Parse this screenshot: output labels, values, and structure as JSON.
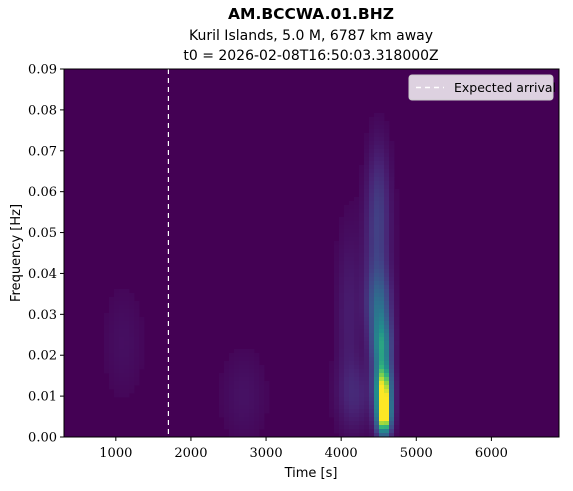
{
  "chart_data": {
    "type": "heatmap",
    "title": "AM.BCCWA.01.BHZ",
    "subtitle_1": "Kuril Islands, 5.0 M, 6787 km away",
    "subtitle_2": "t0 = 2026-02-08T16:50:03.318000Z",
    "xlabel": "Time [s]",
    "ylabel": "Frequency [Hz]",
    "xlim": [
      310,
      6900
    ],
    "ylim": [
      0.0,
      0.09
    ],
    "x_ticks": [
      1000,
      2000,
      3000,
      4000,
      5000,
      6000
    ],
    "x_tick_labels": [
      "1000",
      "2000",
      "3000",
      "4000",
      "5000",
      "6000"
    ],
    "y_ticks": [
      0.0,
      0.01,
      0.02,
      0.03,
      0.04,
      0.05,
      0.06,
      0.07,
      0.08,
      0.09
    ],
    "y_tick_labels": [
      "0.00",
      "0.01",
      "0.02",
      "0.03",
      "0.04",
      "0.05",
      "0.06",
      "0.07",
      "0.08",
      "0.09"
    ],
    "colormap": "viridis",
    "expected_arrival_s": 1700,
    "legend": {
      "label": "Expected arrival",
      "placement": "top-right",
      "line_color": "#ffffff",
      "line_style": "dashed"
    },
    "energy_blobs": [
      {
        "t": 4570,
        "f": 0.005,
        "sigma_t": 70,
        "sigma_f": 0.0035,
        "amp": 1.0
      },
      {
        "t": 4560,
        "f": 0.012,
        "sigma_t": 80,
        "sigma_f": 0.004,
        "amp": 0.85
      },
      {
        "t": 4540,
        "f": 0.022,
        "sigma_t": 90,
        "sigma_f": 0.005,
        "amp": 0.55
      },
      {
        "t": 4500,
        "f": 0.032,
        "sigma_t": 110,
        "sigma_f": 0.006,
        "amp": 0.32
      },
      {
        "t": 4480,
        "f": 0.045,
        "sigma_t": 120,
        "sigma_f": 0.012,
        "amp": 0.18
      },
      {
        "t": 4500,
        "f": 0.06,
        "sigma_t": 110,
        "sigma_f": 0.01,
        "amp": 0.12
      },
      {
        "t": 4200,
        "f": 0.01,
        "sigma_t": 180,
        "sigma_f": 0.006,
        "amp": 0.12
      },
      {
        "t": 4100,
        "f": 0.03,
        "sigma_t": 120,
        "sigma_f": 0.015,
        "amp": 0.1
      },
      {
        "t": 2700,
        "f": 0.01,
        "sigma_t": 220,
        "sigma_f": 0.008,
        "amp": 0.06
      },
      {
        "t": 1100,
        "f": 0.023,
        "sigma_t": 200,
        "sigma_f": 0.01,
        "amp": 0.05
      }
    ]
  }
}
